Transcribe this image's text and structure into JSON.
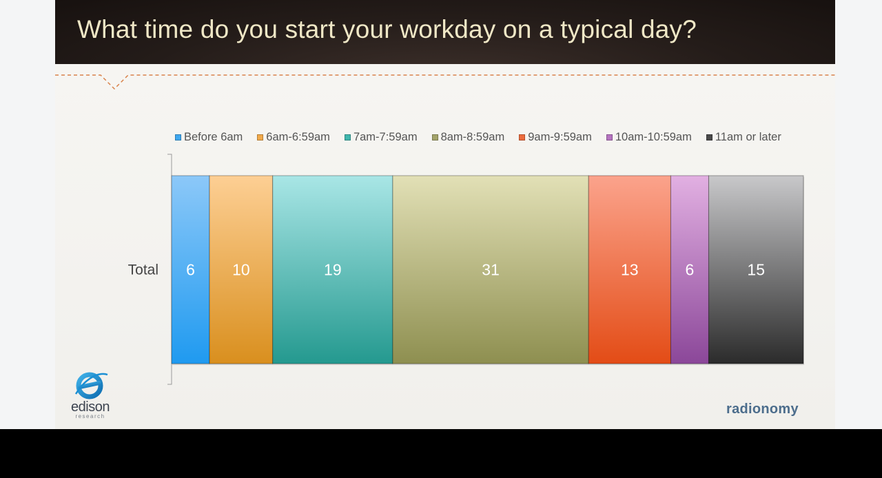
{
  "title": "What time do you start your workday on a typical day?",
  "colors": {
    "header_bg": "#241c19",
    "title_text": "#efe7c6",
    "divider": "#d9824a",
    "bar_label": "#ffffff"
  },
  "chart_data": {
    "type": "bar",
    "orientation": "horizontal",
    "stacked": true,
    "categories": [
      "Total"
    ],
    "xlim": [
      0,
      100
    ],
    "grid": false,
    "legend_position": "top",
    "series": [
      {
        "name": "Before 6am",
        "values": [
          6
        ],
        "color_top": "#8cc8f8",
        "color_bottom": "#1f9af0",
        "swatch": "#3ea7ef"
      },
      {
        "name": "6am-6:59am",
        "values": [
          10
        ],
        "color_top": "#fdcf94",
        "color_bottom": "#d98f1e",
        "swatch": "#f1a94a"
      },
      {
        "name": "7am-7:59am",
        "values": [
          19
        ],
        "color_top": "#a9e6e6",
        "color_bottom": "#24998f",
        "swatch": "#3fb6ad"
      },
      {
        "name": "8am-8:59am",
        "values": [
          31
        ],
        "color_top": "#e2e0b6",
        "color_bottom": "#8e8f50",
        "swatch": "#a3a36a"
      },
      {
        "name": "9am-9:59am",
        "values": [
          13
        ],
        "color_top": "#fba38c",
        "color_bottom": "#e34c16",
        "swatch": "#ec6b3d"
      },
      {
        "name": "10am-10:59am",
        "values": [
          6
        ],
        "color_top": "#e2b0e2",
        "color_bottom": "#8b4799",
        "swatch": "#b573c0"
      },
      {
        "name": "11am or later",
        "values": [
          15
        ],
        "color_top": "#c8c8ca",
        "color_bottom": "#2b2b2b",
        "swatch": "#4a4a4a"
      }
    ]
  },
  "logos": {
    "edison_word": "edison",
    "edison_sub": "research",
    "radionomy": "radionomy"
  }
}
